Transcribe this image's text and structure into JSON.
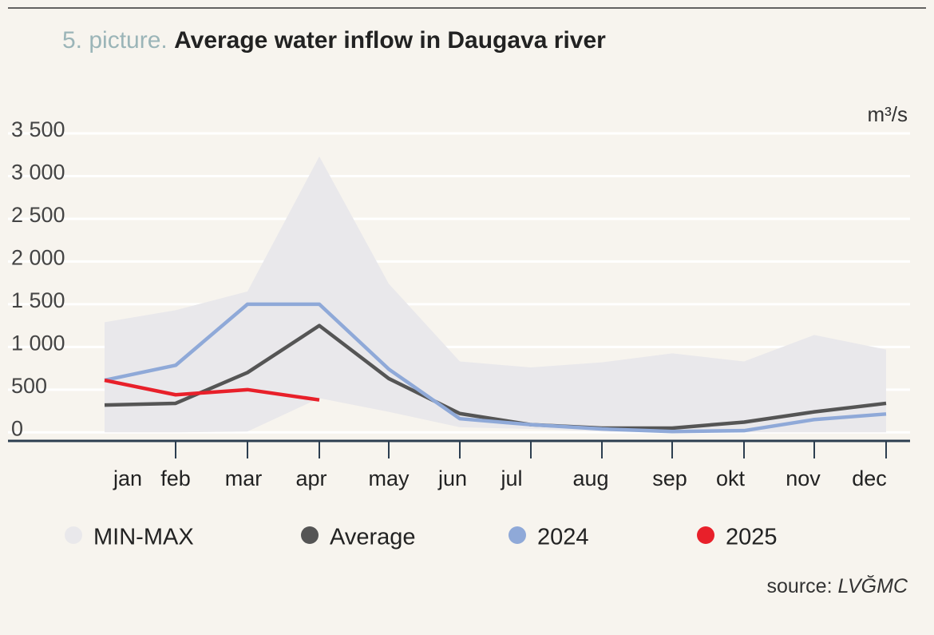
{
  "chart_data": {
    "type": "line",
    "title_prefix": "5. picture.",
    "title": "Average water inflow in Daugava river",
    "unit": "m³/s",
    "source_label": "source:",
    "source": "LVĞMC",
    "categories": [
      "jan",
      "feb",
      "mar",
      "apr",
      "may",
      "jun",
      "jul",
      "aug",
      "sep",
      "okt",
      "nov",
      "dec"
    ],
    "band": {
      "name": "MIN-MAX",
      "color": "#e9e8eb",
      "max": [
        1290,
        1430,
        1650,
        3230,
        1740,
        830,
        760,
        820,
        925,
        830,
        1140,
        970
      ],
      "min": [
        0,
        0,
        10,
        400,
        240,
        60,
        40,
        10,
        0,
        0,
        0,
        0
      ]
    },
    "series": [
      {
        "name": "Average",
        "color": "#555555",
        "values": [
          320,
          340,
          700,
          1250,
          630,
          220,
          90,
          50,
          50,
          120,
          240,
          340
        ]
      },
      {
        "name": "2024",
        "color": "#8fa9d8",
        "values": [
          610,
          785,
          1500,
          1500,
          740,
          160,
          90,
          40,
          10,
          20,
          150,
          215
        ]
      },
      {
        "name": "2025",
        "color": "#e8202a",
        "values": [
          610,
          440,
          500,
          380,
          null,
          null,
          null,
          null,
          null,
          null,
          null,
          null
        ]
      }
    ],
    "ylim": [
      -100,
      3500
    ],
    "yticks": [
      0,
      500,
      {
        "value": 1000,
        "label": "1 000"
      },
      {
        "value": 1500,
        "label": "1 500"
      },
      {
        "value": 2000,
        "label": "2 000"
      },
      {
        "value": 2500,
        "label": "2 500"
      },
      {
        "value": 3000,
        "label": "3 000"
      },
      {
        "value": 3500,
        "label": "3 500"
      }
    ],
    "grid": true
  }
}
